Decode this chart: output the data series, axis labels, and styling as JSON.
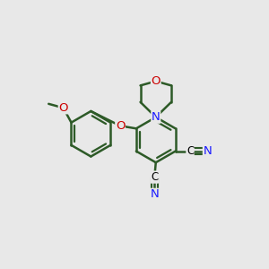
{
  "bg_color": "#e8e8e8",
  "bond_color": "#2d5a27",
  "atom_colors": {
    "N": "#1a1aff",
    "O": "#cc0000",
    "C": "#000000"
  },
  "bond_width": 1.8,
  "font_size": 9.5
}
